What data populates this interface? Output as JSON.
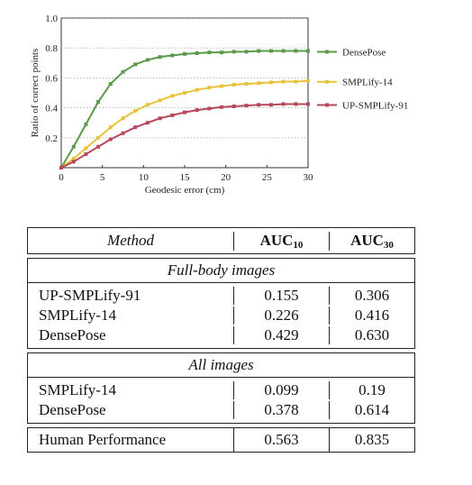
{
  "chart_data": {
    "type": "line",
    "xlabel": "Geodesic error (cm)",
    "ylabel": "Ratio of correct points",
    "xlim": [
      0,
      30
    ],
    "ylim": [
      0,
      1.0
    ],
    "xticks": [
      "0",
      "5",
      "10",
      "15",
      "20",
      "25",
      "30"
    ],
    "yticks": [
      "0.2",
      "0.4",
      "0.6",
      "0.8",
      "1.0"
    ],
    "grid": "y-dotted",
    "legend": "right",
    "x": [
      0,
      1.5,
      3,
      4.5,
      6,
      7.5,
      9,
      10.5,
      12,
      13.5,
      15,
      16.5,
      18,
      19.5,
      21,
      22.5,
      24,
      25.5,
      27,
      28.5,
      30
    ],
    "series": [
      {
        "name": "DensePose",
        "color": "#5a9a4a",
        "values": [
          0.0,
          0.14,
          0.29,
          0.44,
          0.56,
          0.64,
          0.69,
          0.72,
          0.74,
          0.75,
          0.76,
          0.765,
          0.77,
          0.77,
          0.775,
          0.775,
          0.78,
          0.78,
          0.78,
          0.78,
          0.78
        ]
      },
      {
        "name": "SMPLify-14",
        "color": "#e8c23a",
        "values": [
          0.0,
          0.06,
          0.13,
          0.2,
          0.27,
          0.33,
          0.38,
          0.42,
          0.45,
          0.48,
          0.5,
          0.52,
          0.535,
          0.545,
          0.555,
          0.56,
          0.565,
          0.57,
          0.575,
          0.575,
          0.58
        ]
      },
      {
        "name": "UP-SMPLify-91",
        "color": "#b5485a",
        "values": [
          0.0,
          0.04,
          0.09,
          0.14,
          0.19,
          0.23,
          0.27,
          0.3,
          0.33,
          0.35,
          0.37,
          0.385,
          0.395,
          0.405,
          0.41,
          0.415,
          0.42,
          0.42,
          0.425,
          0.425,
          0.425
        ]
      }
    ]
  },
  "table": {
    "headers": {
      "method": "Method",
      "auc10": "AUC",
      "auc10_sub": "10",
      "auc30": "AUC",
      "auc30_sub": "30"
    },
    "sections": [
      {
        "title": "Full-body images",
        "rows": [
          {
            "method": "UP-SMPLify-91",
            "auc10": "0.155",
            "auc30": "0.306"
          },
          {
            "method": "SMPLify-14",
            "auc10": "0.226",
            "auc30": "0.416"
          },
          {
            "method": "DensePose",
            "auc10": "0.429",
            "auc30": "0.630"
          }
        ]
      },
      {
        "title": "All images",
        "rows": [
          {
            "method": "SMPLify-14",
            "auc10": "0.099",
            "auc30": "0.19"
          },
          {
            "method": "DensePose",
            "auc10": "0.378",
            "auc30": "0.614"
          }
        ]
      }
    ],
    "final_row": {
      "method": "Human Performance",
      "auc10": "0.563",
      "auc30": "0.835"
    }
  }
}
